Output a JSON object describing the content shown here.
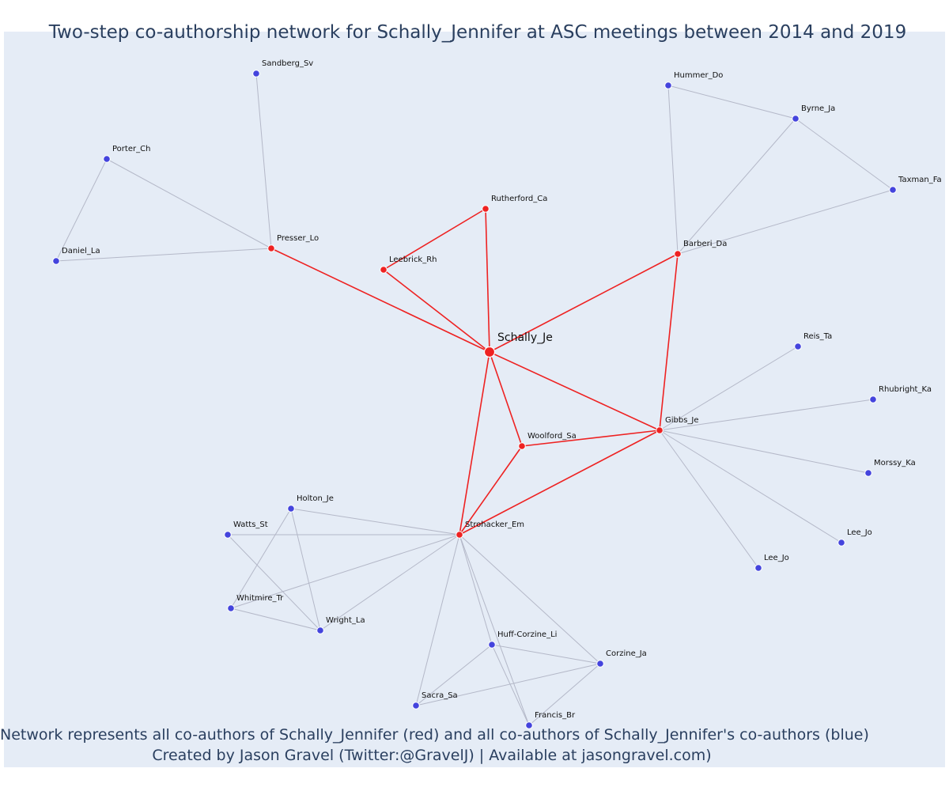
{
  "title": "Two-step co-authorship network for Schally_Jennifer at ASC meetings between 2014 and 2019",
  "footer": {
    "line1": "Network represents all co-authors of Schally_Jennifer (red) and all co-authors of Schally_Jennifer's co-authors (blue)",
    "line2": "Created by Jason Gravel (Twitter:@GravelJ) | Available at jasongravel.com)"
  },
  "colors": {
    "background": "#e5ecf6",
    "first_degree": "#ee2222",
    "second_degree": "#4444dd",
    "second_degree_edge": "#b4b8c8",
    "text": "#2a3f5f"
  },
  "network": {
    "center": "Schally_Je",
    "nodes": [
      {
        "id": "Schally_Je",
        "label": "Schally_Je",
        "group": "ego"
      },
      {
        "id": "Rutherford_Ca",
        "label": "Rutherford_Ca",
        "group": "coauthor"
      },
      {
        "id": "Leebrick_Rh",
        "label": "Leebrick_Rh",
        "group": "coauthor"
      },
      {
        "id": "Presser_Lo",
        "label": "Presser_Lo",
        "group": "coauthor"
      },
      {
        "id": "Barberi_Da",
        "label": "Barberi_Da",
        "group": "coauthor"
      },
      {
        "id": "Gibbs_Je",
        "label": "Gibbs_Je",
        "group": "coauthor"
      },
      {
        "id": "Woolford_Sa",
        "label": "Woolford_Sa",
        "group": "coauthor"
      },
      {
        "id": "Strohacker_Em",
        "label": "Strohacker_Em",
        "group": "coauthor"
      },
      {
        "id": "Sandberg_Sv",
        "label": "Sandberg_Sv",
        "group": "second"
      },
      {
        "id": "Porter_Ch",
        "label": "Porter_Ch",
        "group": "second"
      },
      {
        "id": "Daniel_La",
        "label": "Daniel_La",
        "group": "second"
      },
      {
        "id": "Hummer_Do",
        "label": "Hummer_Do",
        "group": "second"
      },
      {
        "id": "Byrne_Ja",
        "label": "Byrne_Ja",
        "group": "second"
      },
      {
        "id": "Taxman_Fa",
        "label": "Taxman_Fa",
        "group": "second"
      },
      {
        "id": "Reis_Ta",
        "label": "Reis_Ta",
        "group": "second"
      },
      {
        "id": "Rhubright_Ka",
        "label": "Rhubright_Ka",
        "group": "second"
      },
      {
        "id": "Morssy_Ka",
        "label": "Morssy_Ka",
        "group": "second"
      },
      {
        "id": "Lee_Jo_1",
        "label": "Lee_Jo",
        "group": "second"
      },
      {
        "id": "Lee_Jo_2",
        "label": "Lee_Jo",
        "group": "second"
      },
      {
        "id": "Holton_Je",
        "label": "Holton_Je",
        "group": "second"
      },
      {
        "id": "Watts_St",
        "label": "Watts_St",
        "group": "second"
      },
      {
        "id": "Whitmire_Tr",
        "label": "Whitmire_Tr",
        "group": "second"
      },
      {
        "id": "Wright_La",
        "label": "Wright_La",
        "group": "second"
      },
      {
        "id": "Huff-Corzine_Li",
        "label": "Huff-Corzine_Li",
        "group": "second"
      },
      {
        "id": "Corzine_Ja",
        "label": "Corzine_Ja",
        "group": "second"
      },
      {
        "id": "Sacra_Sa",
        "label": "Sacra_Sa",
        "group": "second"
      },
      {
        "id": "Francis_Br",
        "label": "Francis_Br",
        "group": "second"
      }
    ],
    "edges": [
      [
        "Schally_Je",
        "Presser_Lo"
      ],
      [
        "Schally_Je",
        "Leebrick_Rh"
      ],
      [
        "Schally_Je",
        "Rutherford_Ca"
      ],
      [
        "Schally_Je",
        "Barberi_Da"
      ],
      [
        "Schally_Je",
        "Gibbs_Je"
      ],
      [
        "Schally_Je",
        "Woolford_Sa"
      ],
      [
        "Schally_Je",
        "Strohacker_Em"
      ],
      [
        "Leebrick_Rh",
        "Rutherford_Ca"
      ],
      [
        "Barberi_Da",
        "Gibbs_Je"
      ],
      [
        "Woolford_Sa",
        "Gibbs_Je"
      ],
      [
        "Woolford_Sa",
        "Strohacker_Em"
      ],
      [
        "Strohacker_Em",
        "Gibbs_Je"
      ],
      [
        "Presser_Lo",
        "Sandberg_Sv"
      ],
      [
        "Presser_Lo",
        "Porter_Ch"
      ],
      [
        "Presser_Lo",
        "Daniel_La"
      ],
      [
        "Porter_Ch",
        "Daniel_La"
      ],
      [
        "Barberi_Da",
        "Hummer_Do"
      ],
      [
        "Barberi_Da",
        "Byrne_Ja"
      ],
      [
        "Barberi_Da",
        "Taxman_Fa"
      ],
      [
        "Hummer_Do",
        "Byrne_Ja"
      ],
      [
        "Byrne_Ja",
        "Taxman_Fa"
      ],
      [
        "Gibbs_Je",
        "Reis_Ta"
      ],
      [
        "Gibbs_Je",
        "Rhubright_Ka"
      ],
      [
        "Gibbs_Je",
        "Morssy_Ka"
      ],
      [
        "Gibbs_Je",
        "Lee_Jo_1"
      ],
      [
        "Gibbs_Je",
        "Lee_Jo_2"
      ],
      [
        "Strohacker_Em",
        "Holton_Je"
      ],
      [
        "Strohacker_Em",
        "Watts_St"
      ],
      [
        "Strohacker_Em",
        "Whitmire_Tr"
      ],
      [
        "Strohacker_Em",
        "Wright_La"
      ],
      [
        "Strohacker_Em",
        "Huff-Corzine_Li"
      ],
      [
        "Strohacker_Em",
        "Corzine_Ja"
      ],
      [
        "Strohacker_Em",
        "Sacra_Sa"
      ],
      [
        "Strohacker_Em",
        "Francis_Br"
      ],
      [
        "Holton_Je",
        "Whitmire_Tr"
      ],
      [
        "Holton_Je",
        "Wright_La"
      ],
      [
        "Watts_St",
        "Wright_La"
      ],
      [
        "Whitmire_Tr",
        "Wright_La"
      ],
      [
        "Huff-Corzine_Li",
        "Corzine_Ja"
      ],
      [
        "Huff-Corzine_Li",
        "Sacra_Sa"
      ],
      [
        "Huff-Corzine_Li",
        "Francis_Br"
      ],
      [
        "Corzine_Ja",
        "Sacra_Sa"
      ],
      [
        "Corzine_Ja",
        "Francis_Br"
      ]
    ]
  }
}
